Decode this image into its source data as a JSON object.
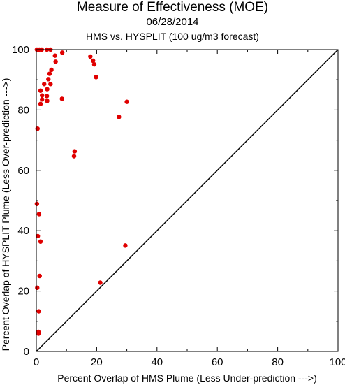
{
  "chart_data": {
    "type": "scatter",
    "title": "Measure of Effectiveness (MOE)",
    "subtitle": "06/28/2014",
    "subtitle2": "HMS vs. HYSPLIT  (100 ug/m3 forecast)",
    "xlabel": "Percent Overlap of HMS Plume (Less Under-prediction --->)",
    "ylabel": "Percent Overlap of HYSPLIT Plume (Less Over-prediction --->)",
    "xlim": [
      0,
      100
    ],
    "ylim": [
      0,
      100
    ],
    "xticks": [
      "0",
      "20",
      "40",
      "60",
      "80",
      "100"
    ],
    "yticks": [
      "0",
      "20",
      "40",
      "60",
      "80",
      "100"
    ],
    "reference_line": "y = x",
    "point_color": "#e00000",
    "line_color": "#000000",
    "points": [
      [
        0.2,
        100
      ],
      [
        1.0,
        100
      ],
      [
        1.8,
        100
      ],
      [
        3.5,
        100
      ],
      [
        4.7,
        100
      ],
      [
        6.2,
        98.0
      ],
      [
        6.4,
        96.0
      ],
      [
        8.6,
        99.0
      ],
      [
        5.0,
        93.3
      ],
      [
        4.4,
        92.0
      ],
      [
        4.0,
        90.2
      ],
      [
        2.6,
        88.6
      ],
      [
        4.7,
        88.6
      ],
      [
        1.4,
        86.4
      ],
      [
        3.6,
        86.9
      ],
      [
        3.5,
        84.6
      ],
      [
        1.9,
        84.8
      ],
      [
        1.9,
        83.5
      ],
      [
        3.6,
        83.0
      ],
      [
        8.5,
        83.7
      ],
      [
        1.4,
        82.0
      ],
      [
        17.9,
        97.7
      ],
      [
        18.8,
        96.3
      ],
      [
        19.2,
        95.1
      ],
      [
        19.8,
        90.9
      ],
      [
        30.0,
        82.7
      ],
      [
        27.4,
        77.7
      ],
      [
        0.4,
        73.8
      ],
      [
        12.7,
        66.3
      ],
      [
        12.5,
        64.7
      ],
      [
        0.2,
        48.9
      ],
      [
        0.9,
        45.5
      ],
      [
        0.5,
        38.2
      ],
      [
        1.4,
        36.4
      ],
      [
        29.5,
        35.1
      ],
      [
        1.1,
        25.0
      ],
      [
        21.2,
        22.8
      ],
      [
        0.3,
        21.1
      ],
      [
        0.8,
        13.3
      ],
      [
        0.7,
        6.5
      ],
      [
        0.7,
        5.9
      ]
    ]
  }
}
